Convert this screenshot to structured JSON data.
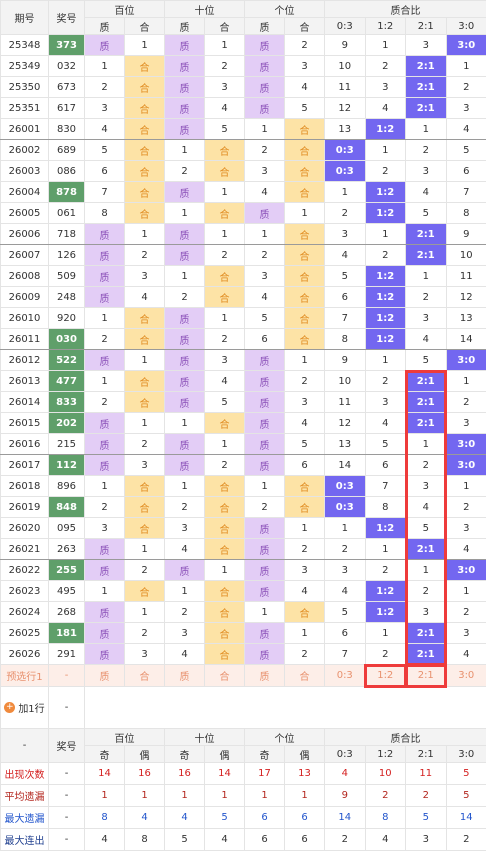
{
  "header": {
    "period": "期号",
    "number": "奖号",
    "groups": [
      "百位",
      "十位",
      "个位",
      "质合比"
    ],
    "sub": [
      "质",
      "合",
      "质",
      "合",
      "质",
      "合",
      "0:3",
      "1:2",
      "2:1",
      "3:0"
    ]
  },
  "rows": [
    {
      "period": "25348",
      "number": "373",
      "pair": true,
      "cells": [
        "质",
        "1",
        "质",
        "1",
        "质",
        "2",
        "9",
        "1",
        "3",
        "3:0"
      ]
    },
    {
      "period": "25349",
      "number": "032",
      "pair": false,
      "cells": [
        "1",
        "合",
        "质",
        "2",
        "质",
        "3",
        "10",
        "2",
        "2:1",
        "1"
      ]
    },
    {
      "period": "25350",
      "number": "673",
      "pair": false,
      "cells": [
        "2",
        "合",
        "质",
        "3",
        "质",
        "4",
        "11",
        "3",
        "2:1",
        "2"
      ]
    },
    {
      "period": "25351",
      "number": "617",
      "pair": false,
      "cells": [
        "3",
        "合",
        "质",
        "4",
        "质",
        "5",
        "12",
        "4",
        "2:1",
        "3"
      ]
    },
    {
      "period": "26001",
      "number": "830",
      "pair": false,
      "cells": [
        "4",
        "合",
        "质",
        "5",
        "1",
        "合",
        "13",
        "1:2",
        "1",
        "4"
      ]
    },
    {
      "period": "26002",
      "number": "689",
      "pair": false,
      "cells": [
        "5",
        "合",
        "1",
        "合",
        "2",
        "合",
        "0:3",
        "1",
        "2",
        "5"
      ]
    },
    {
      "period": "26003",
      "number": "086",
      "pair": false,
      "cells": [
        "6",
        "合",
        "2",
        "合",
        "3",
        "合",
        "0:3",
        "2",
        "3",
        "6"
      ]
    },
    {
      "period": "26004",
      "number": "878",
      "pair": true,
      "cells": [
        "7",
        "合",
        "质",
        "1",
        "4",
        "合",
        "1",
        "1:2",
        "4",
        "7"
      ]
    },
    {
      "period": "26005",
      "number": "061",
      "pair": false,
      "cells": [
        "8",
        "合",
        "1",
        "合",
        "质",
        "1",
        "2",
        "1:2",
        "5",
        "8"
      ]
    },
    {
      "period": "26006",
      "number": "718",
      "pair": false,
      "cells": [
        "质",
        "1",
        "质",
        "1",
        "1",
        "合",
        "3",
        "1",
        "2:1",
        "9"
      ]
    },
    {
      "period": "26007",
      "number": "126",
      "pair": false,
      "cells": [
        "质",
        "2",
        "质",
        "2",
        "2",
        "合",
        "4",
        "2",
        "2:1",
        "10"
      ]
    },
    {
      "period": "26008",
      "number": "509",
      "pair": false,
      "cells": [
        "质",
        "3",
        "1",
        "合",
        "3",
        "合",
        "5",
        "1:2",
        "1",
        "11"
      ]
    },
    {
      "period": "26009",
      "number": "248",
      "pair": false,
      "cells": [
        "质",
        "4",
        "2",
        "合",
        "4",
        "合",
        "6",
        "1:2",
        "2",
        "12"
      ]
    },
    {
      "period": "26010",
      "number": "920",
      "pair": false,
      "cells": [
        "1",
        "合",
        "质",
        "1",
        "5",
        "合",
        "7",
        "1:2",
        "3",
        "13"
      ]
    },
    {
      "period": "26011",
      "number": "030",
      "pair": true,
      "cells": [
        "2",
        "合",
        "质",
        "2",
        "6",
        "合",
        "8",
        "1:2",
        "4",
        "14"
      ]
    },
    {
      "period": "26012",
      "number": "522",
      "pair": true,
      "cells": [
        "质",
        "1",
        "质",
        "3",
        "质",
        "1",
        "9",
        "1",
        "5",
        "3:0"
      ]
    },
    {
      "period": "26013",
      "number": "477",
      "pair": true,
      "cells": [
        "1",
        "合",
        "质",
        "4",
        "质",
        "2",
        "10",
        "2",
        "2:1",
        "1"
      ]
    },
    {
      "period": "26014",
      "number": "833",
      "pair": true,
      "cells": [
        "2",
        "合",
        "质",
        "5",
        "质",
        "3",
        "11",
        "3",
        "2:1",
        "2"
      ]
    },
    {
      "period": "26015",
      "number": "202",
      "pair": true,
      "cells": [
        "质",
        "1",
        "1",
        "合",
        "质",
        "4",
        "12",
        "4",
        "2:1",
        "3"
      ]
    },
    {
      "period": "26016",
      "number": "215",
      "pair": false,
      "cells": [
        "质",
        "2",
        "质",
        "1",
        "质",
        "5",
        "13",
        "5",
        "1",
        "3:0"
      ]
    },
    {
      "period": "26017",
      "number": "112",
      "pair": true,
      "cells": [
        "质",
        "3",
        "质",
        "2",
        "质",
        "6",
        "14",
        "6",
        "2",
        "3:0"
      ]
    },
    {
      "period": "26018",
      "number": "896",
      "pair": false,
      "cells": [
        "1",
        "合",
        "1",
        "合",
        "1",
        "合",
        "0:3",
        "7",
        "3",
        "1"
      ]
    },
    {
      "period": "26019",
      "number": "848",
      "pair": true,
      "cells": [
        "2",
        "合",
        "2",
        "合",
        "2",
        "合",
        "0:3",
        "8",
        "4",
        "2"
      ]
    },
    {
      "period": "26020",
      "number": "095",
      "pair": false,
      "cells": [
        "3",
        "合",
        "3",
        "合",
        "质",
        "1",
        "1",
        "1:2",
        "5",
        "3"
      ]
    },
    {
      "period": "26021",
      "number": "263",
      "pair": false,
      "cells": [
        "质",
        "1",
        "4",
        "合",
        "质",
        "2",
        "2",
        "1",
        "2:1",
        "4"
      ]
    },
    {
      "period": "26022",
      "number": "255",
      "pair": true,
      "cells": [
        "质",
        "2",
        "质",
        "1",
        "质",
        "3",
        "3",
        "2",
        "1",
        "3:0"
      ]
    },
    {
      "period": "26023",
      "number": "495",
      "pair": false,
      "cells": [
        "1",
        "合",
        "1",
        "合",
        "质",
        "4",
        "4",
        "1:2",
        "2",
        "1"
      ]
    },
    {
      "period": "26024",
      "number": "268",
      "pair": false,
      "cells": [
        "质",
        "1",
        "2",
        "合",
        "1",
        "合",
        "5",
        "1:2",
        "3",
        "2"
      ]
    },
    {
      "period": "26025",
      "number": "181",
      "pair": true,
      "cells": [
        "质",
        "2",
        "3",
        "合",
        "质",
        "1",
        "6",
        "1",
        "2:1",
        "3"
      ]
    },
    {
      "period": "26026",
      "number": "291",
      "pair": false,
      "cells": [
        "质",
        "3",
        "4",
        "合",
        "质",
        "2",
        "7",
        "2",
        "2:1",
        "4"
      ]
    }
  ],
  "preselect": {
    "label": "预选行1",
    "number": "-",
    "cells": [
      "质",
      "合",
      "质",
      "合",
      "质",
      "合",
      "0:3",
      "1:2",
      "2:1",
      "3:0"
    ]
  },
  "add_row": {
    "label": "加1行",
    "value": "-"
  },
  "stats_header": {
    "dash": "-",
    "number": "奖号",
    "groups": [
      "百位",
      "十位",
      "个位",
      "质合比"
    ],
    "sub": [
      "奇",
      "偶",
      "奇",
      "偶",
      "奇",
      "偶",
      "0:3",
      "1:2",
      "2:1",
      "3:0"
    ]
  },
  "stats": [
    {
      "label": "出现次数",
      "number": "-",
      "values": [
        "14",
        "16",
        "16",
        "14",
        "17",
        "13",
        "4",
        "10",
        "11",
        "5"
      ]
    },
    {
      "label": "平均遗漏",
      "number": "-",
      "values": [
        "1",
        "1",
        "1",
        "1",
        "1",
        "1",
        "9",
        "2",
        "2",
        "5"
      ]
    },
    {
      "label": "最大遗漏",
      "number": "-",
      "values": [
        "8",
        "4",
        "4",
        "5",
        "6",
        "6",
        "14",
        "8",
        "5",
        "14"
      ]
    },
    {
      "label": "最大连出",
      "number": "-",
      "values": [
        "4",
        "8",
        "5",
        "4",
        "6",
        "6",
        "2",
        "4",
        "3",
        "2"
      ]
    }
  ]
}
